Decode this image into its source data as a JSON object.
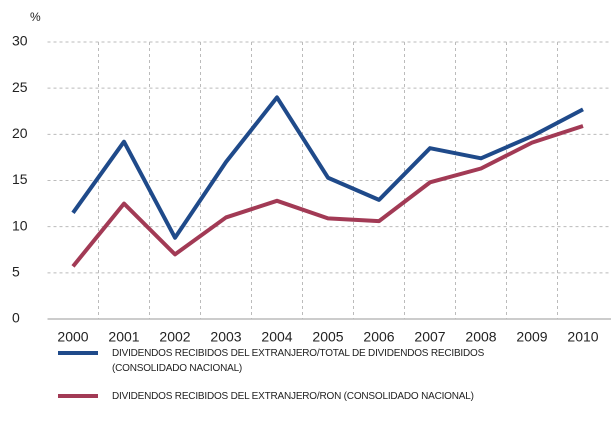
{
  "chart_data": {
    "type": "line",
    "ylabel": "%",
    "categories": [
      "2000",
      "2001",
      "2002",
      "2003",
      "2004",
      "2005",
      "2006",
      "2007",
      "2008",
      "2009",
      "2010"
    ],
    "series": [
      {
        "name": "DIVIDENDOS RECIBIDOS DEL EXTRANJERO/TOTAL DE DIVIDENDOS RECIBIDOS (CONSOLIDADO NACIONAL)",
        "color": "#1f4a8a",
        "values": [
          11.5,
          19.2,
          8.8,
          17.0,
          24.0,
          15.3,
          12.9,
          18.5,
          17.4,
          19.8,
          22.7
        ]
      },
      {
        "name": "DIVIDENDOS RECIBIDOS DEL EXTRANJERO/RON (CONSOLIDADO NACIONAL)",
        "color": "#a23a55",
        "values": [
          5.7,
          12.5,
          7.0,
          11.0,
          12.8,
          10.9,
          10.6,
          14.8,
          16.3,
          19.1,
          20.9
        ]
      }
    ],
    "ylim": [
      0,
      30
    ],
    "yticks": [
      0,
      5,
      10,
      15,
      20,
      25,
      30
    ],
    "grid": true
  }
}
